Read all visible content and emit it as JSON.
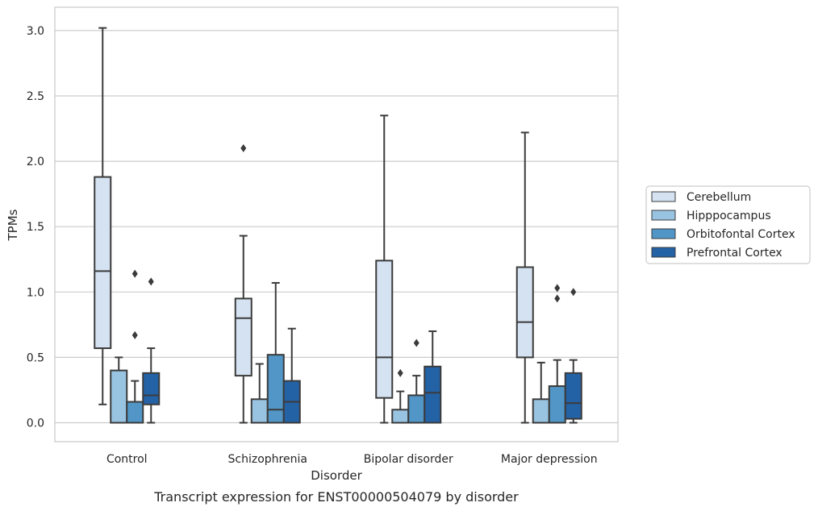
{
  "chart_data": {
    "type": "box",
    "caption": "Transcript expression for ENST00000504079 by disorder",
    "xlabel": "Disorder",
    "ylabel": "TPMs",
    "ylim": [
      -0.15,
      3.18
    ],
    "yticks": [
      "0.0",
      "0.5",
      "1.0",
      "1.5",
      "2.0",
      "2.5",
      "3.0"
    ],
    "grid": true,
    "legend_position": "right",
    "categories": [
      "Control",
      "Schizophrenia",
      "Bipolar disorder",
      "Major depression"
    ],
    "series": [
      {
        "name": "Cerebellum",
        "color": "#d4e2f1",
        "boxes": [
          {
            "min": 0.14,
            "q1": 0.57,
            "median": 1.16,
            "q3": 1.88,
            "max": 3.02,
            "outliers": []
          },
          {
            "min": 0.0,
            "q1": 0.36,
            "median": 0.8,
            "q3": 0.95,
            "max": 1.43,
            "outliers": [
              2.1
            ]
          },
          {
            "min": 0.0,
            "q1": 0.19,
            "median": 0.5,
            "q3": 1.24,
            "max": 2.35,
            "outliers": []
          },
          {
            "min": 0.0,
            "q1": 0.5,
            "median": 0.77,
            "q3": 1.19,
            "max": 2.22,
            "outliers": []
          }
        ]
      },
      {
        "name": "Hipppocampus",
        "color": "#99c4e1",
        "boxes": [
          {
            "min": 0.0,
            "q1": 0.0,
            "median": 0.0,
            "q3": 0.4,
            "max": 0.5,
            "outliers": []
          },
          {
            "min": 0.0,
            "q1": 0.0,
            "median": 0.0,
            "q3": 0.18,
            "max": 0.45,
            "outliers": []
          },
          {
            "min": 0.0,
            "q1": 0.0,
            "median": 0.0,
            "q3": 0.1,
            "max": 0.24,
            "outliers": [
              0.38
            ]
          },
          {
            "min": 0.0,
            "q1": 0.0,
            "median": 0.0,
            "q3": 0.18,
            "max": 0.46,
            "outliers": []
          }
        ]
      },
      {
        "name": "Orbitofontal Cortex",
        "color": "#5196c6",
        "boxes": [
          {
            "min": 0.0,
            "q1": 0.0,
            "median": 0.0,
            "q3": 0.16,
            "max": 0.32,
            "outliers": [
              0.67,
              1.14
            ]
          },
          {
            "min": 0.0,
            "q1": 0.0,
            "median": 0.1,
            "q3": 0.52,
            "max": 1.07,
            "outliers": []
          },
          {
            "min": 0.0,
            "q1": 0.0,
            "median": 0.0,
            "q3": 0.21,
            "max": 0.36,
            "outliers": [
              0.61
            ]
          },
          {
            "min": 0.0,
            "q1": 0.0,
            "median": 0.0,
            "q3": 0.28,
            "max": 0.48,
            "outliers": [
              0.95,
              1.03
            ]
          }
        ]
      },
      {
        "name": "Prefrontal Cortex",
        "color": "#2462a6",
        "boxes": [
          {
            "min": 0.0,
            "q1": 0.14,
            "median": 0.21,
            "q3": 0.38,
            "max": 0.57,
            "outliers": [
              1.08
            ]
          },
          {
            "min": 0.0,
            "q1": 0.0,
            "median": 0.16,
            "q3": 0.32,
            "max": 0.72,
            "outliers": []
          },
          {
            "min": 0.0,
            "q1": 0.0,
            "median": 0.23,
            "q3": 0.43,
            "max": 0.7,
            "outliers": []
          },
          {
            "min": 0.0,
            "q1": 0.03,
            "median": 0.15,
            "q3": 0.38,
            "max": 0.48,
            "outliers": [
              1.0
            ]
          }
        ]
      }
    ],
    "colors": {
      "edge": "#3b3b3b",
      "grid": "#cccccc",
      "frame": "#cccccc",
      "text": "#262626"
    }
  }
}
